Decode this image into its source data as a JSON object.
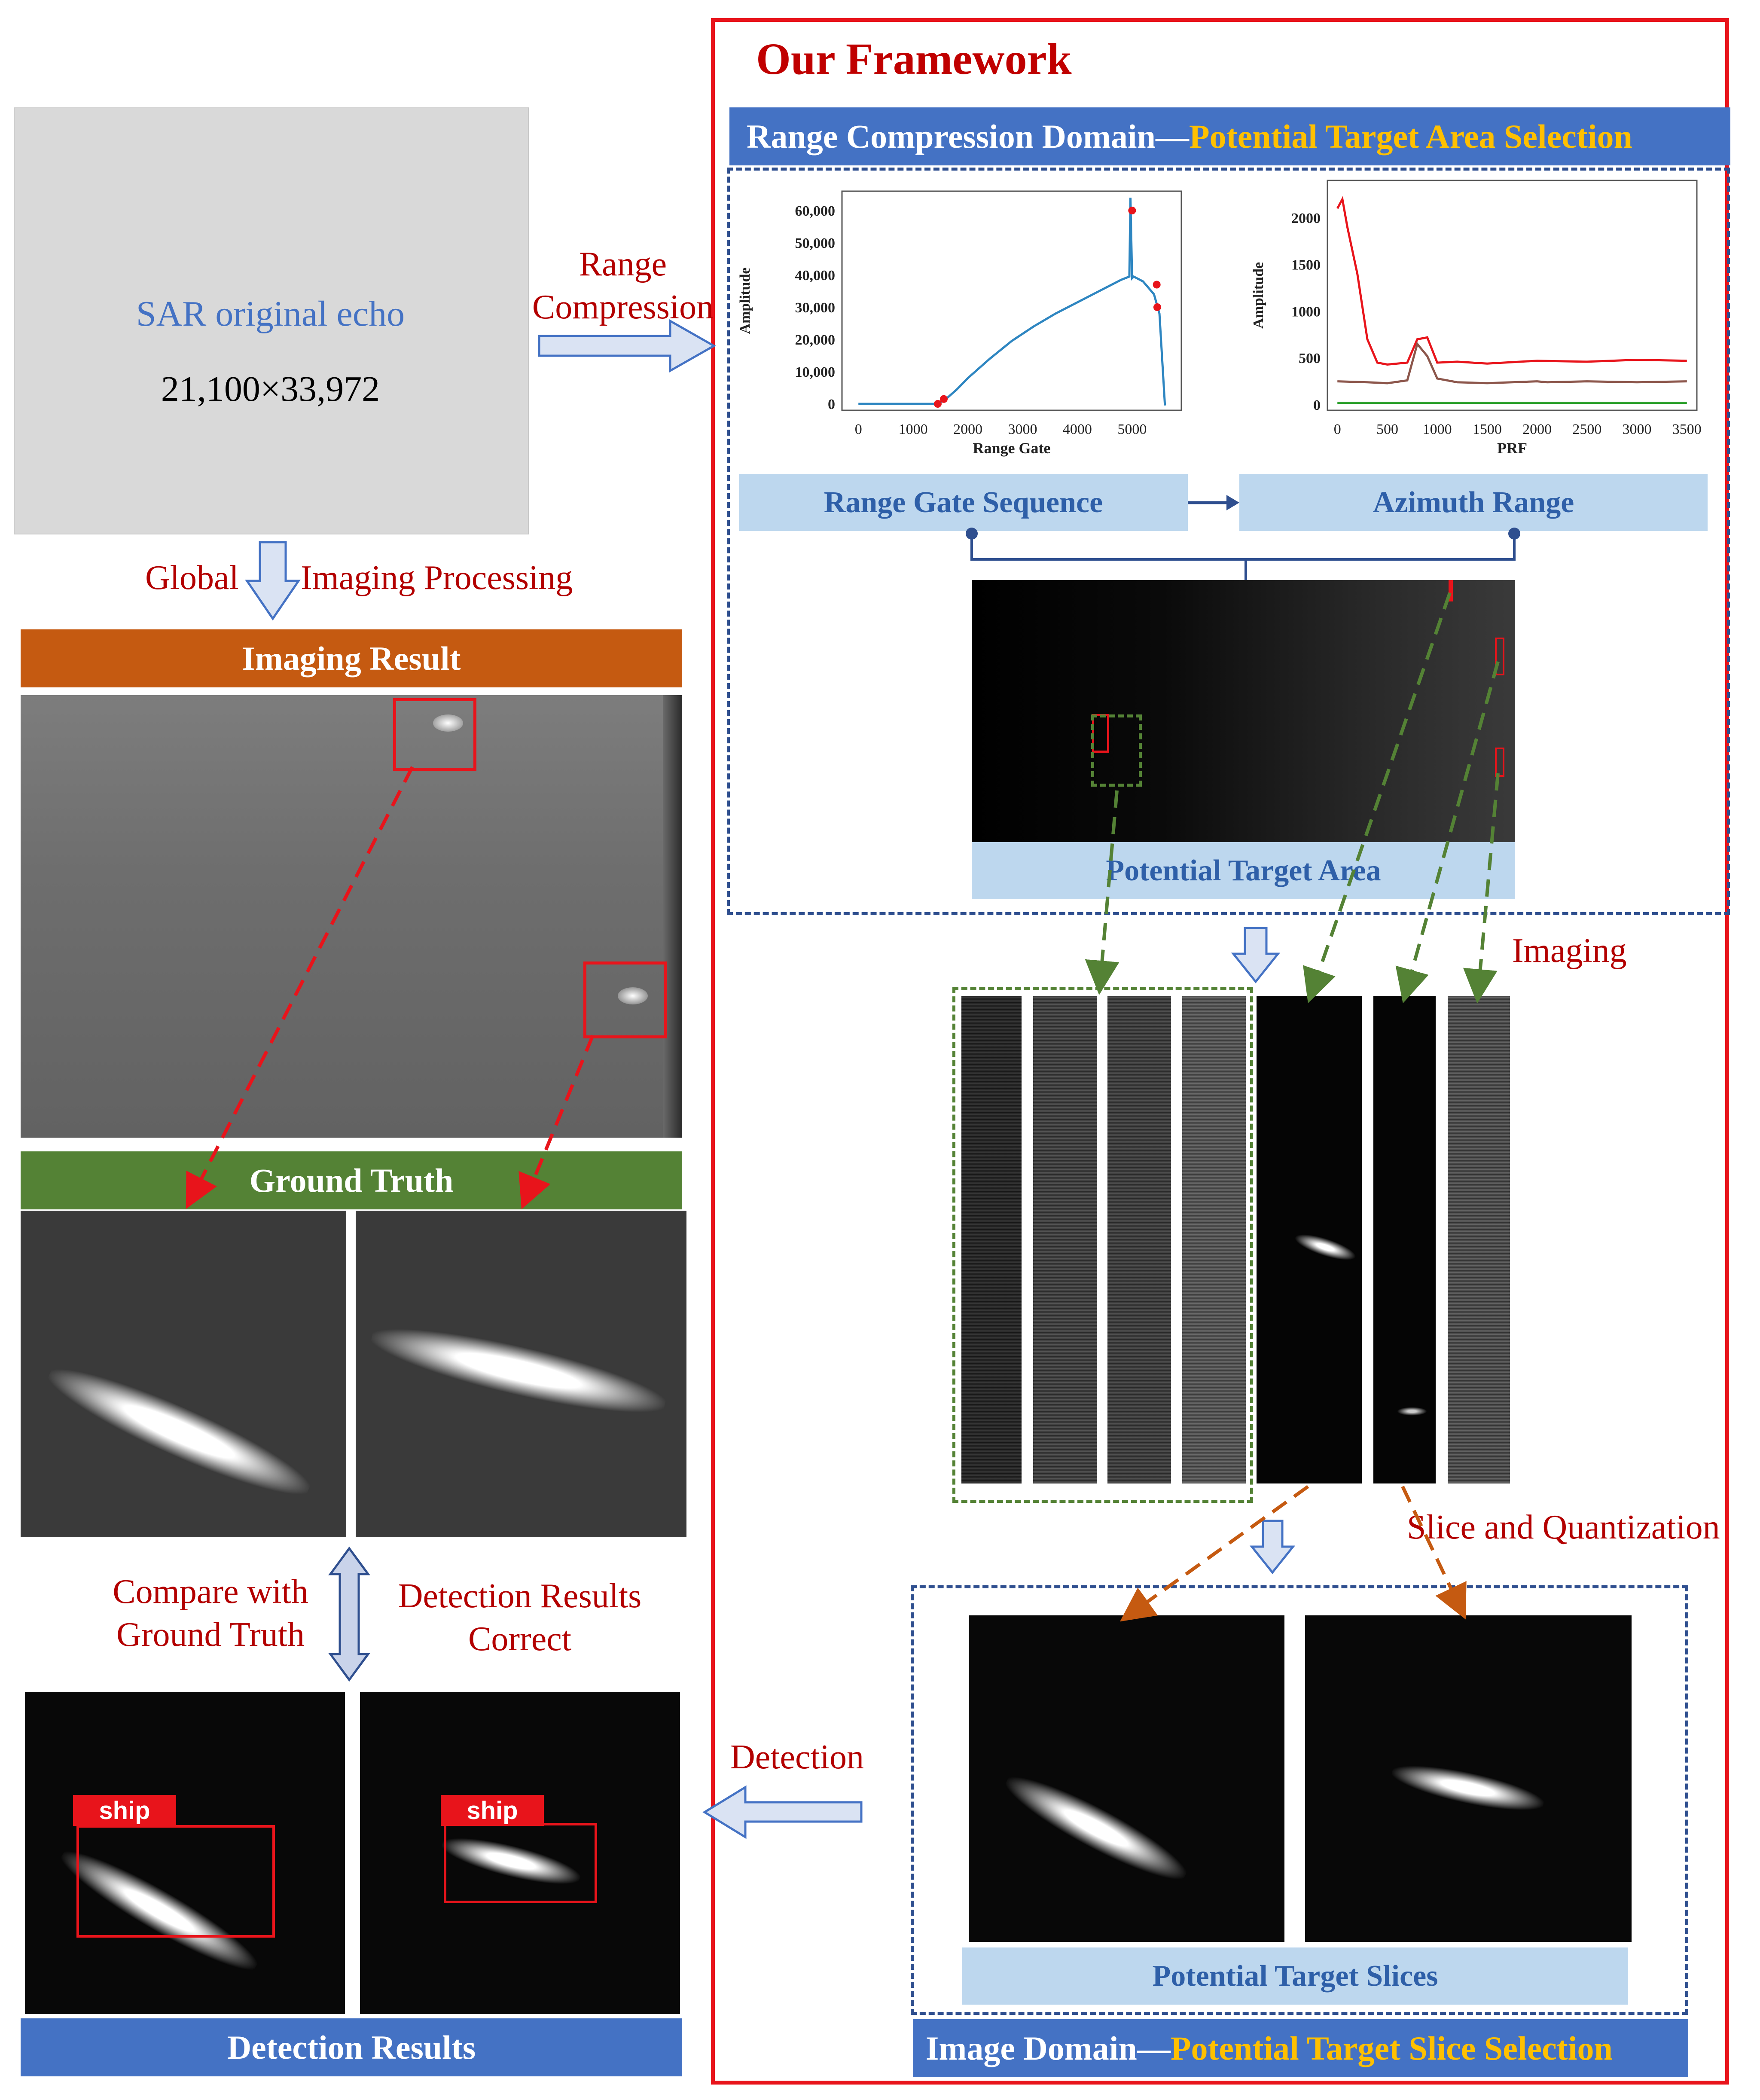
{
  "framework_title": "Our Framework",
  "left": {
    "echo_label": "SAR original echo",
    "echo_size": "21,100×33,972",
    "global_label": "Global",
    "imaging_processing_label": "Imaging Processing",
    "imaging_result_title": "Imaging Result",
    "ground_truth_title": "Ground Truth",
    "compare_label_line1": "Compare with",
    "compare_label_line2": "Ground Truth",
    "detection_correct_line1": "Detection Results",
    "detection_correct_line2": "Correct",
    "ship_label": "ship",
    "detection_results_title": "Detection Results"
  },
  "arrows": {
    "range_label_line1": "Range",
    "range_label_line2": "Compression",
    "imaging_label": "Imaging",
    "slice_label": "Slice and Quantization",
    "detection_label": "Detection"
  },
  "range_domain": {
    "title_part1": "Range Compression Domain",
    "title_dash": "—",
    "title_part2": "Potential Target Area Selection",
    "range_gate_sequence": "Range Gate Sequence",
    "azimuth_range": "Azimuth Range",
    "potential_target_area": "Potential Target Area"
  },
  "image_domain": {
    "title_part1": "Image Domain",
    "title_dash": "—",
    "title_part2": "Potential Target Slice Selection",
    "potential_target_slices": "Potential Target Slices"
  },
  "colors": {
    "red_frame": "#e8141b",
    "blue_bar": "#4472c4",
    "orange_bar": "#c55a11",
    "green_bar": "#548235",
    "yellow_text": "#ffc000",
    "light_blue": "#bdd7ee"
  },
  "chart_data": [
    {
      "type": "line",
      "title": "",
      "xlabel": "Range Gate",
      "ylabel": "Amplitude",
      "xlim": [
        -300,
        5900
      ],
      "ylim": [
        -2000,
        66000
      ],
      "xticks": [
        "0",
        "1000",
        "2000",
        "3000",
        "4000",
        "5000"
      ],
      "yticks": [
        "0",
        "10,000",
        "20,000",
        "30,000",
        "40,000",
        "50,000",
        "60,000"
      ],
      "series": [
        {
          "name": "amplitude",
          "x": [
            0,
            1450,
            1600,
            1800,
            2000,
            2400,
            2800,
            3200,
            3600,
            4000,
            4400,
            4800,
            4950,
            4970,
            5000,
            5030,
            5200,
            5400,
            5500,
            5600
          ],
          "values": [
            0,
            0,
            1500,
            4500,
            8000,
            14000,
            19500,
            24000,
            28000,
            31500,
            35000,
            38500,
            39500,
            64000,
            39000,
            39500,
            38000,
            34000,
            28000,
            -500
          ]
        },
        {
          "name": "selected",
          "type": "scatter",
          "x": [
            1450,
            1560,
            5000,
            5450,
            5460
          ],
          "values": [
            0,
            1500,
            60000,
            37000,
            30000
          ]
        }
      ]
    },
    {
      "type": "line",
      "title": "",
      "xlabel": "PRF",
      "ylabel": "Amplitude",
      "xlim": [
        -100,
        3600
      ],
      "ylim": [
        -60,
        2400
      ],
      "xticks": [
        "0",
        "500",
        "1000",
        "1500",
        "2000",
        "2500",
        "3000",
        "3500"
      ],
      "yticks": [
        "0",
        "500",
        "1000",
        "1500",
        "2000"
      ],
      "series": [
        {
          "name": "red",
          "x": [
            0,
            50,
            100,
            200,
            300,
            400,
            500,
            700,
            800,
            900,
            1000,
            1200,
            1500,
            2000,
            2500,
            3000,
            3500
          ],
          "values": [
            2100,
            2200,
            1900,
            1400,
            700,
            450,
            430,
            450,
            700,
            720,
            450,
            460,
            440,
            470,
            460,
            480,
            470
          ]
        },
        {
          "name": "brown",
          "x": [
            0,
            300,
            500,
            700,
            800,
            900,
            1000,
            1200,
            1500,
            2000,
            2100,
            2500,
            3000,
            3500
          ],
          "values": [
            250,
            240,
            230,
            260,
            650,
            520,
            280,
            240,
            230,
            250,
            240,
            250,
            240,
            250
          ]
        },
        {
          "name": "green",
          "x": [
            0,
            3500
          ],
          "values": [
            20,
            20
          ]
        }
      ]
    }
  ]
}
